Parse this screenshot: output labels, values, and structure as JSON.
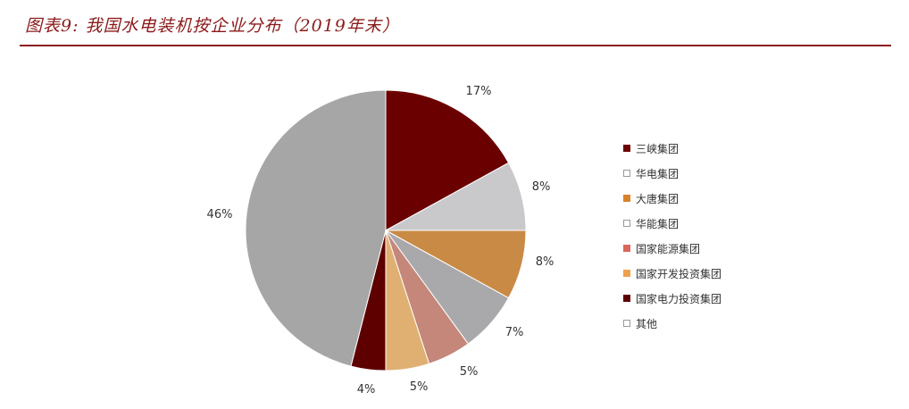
{
  "header": {
    "title": "图表9: 我国水电装机按企业分布（2019年末）"
  },
  "chart_data": {
    "type": "pie",
    "title": "图表9: 我国水电装机按企业分布（2019年末）",
    "categories": [
      "三峡集团",
      "华电集团",
      "大唐集团",
      "华能集团",
      "国家能源集团",
      "国家开发投资集团",
      "国家电力投资集团",
      "其他"
    ],
    "values": [
      17,
      8,
      8,
      7,
      5,
      5,
      4,
      46
    ],
    "labels": [
      "17%",
      "8%",
      "8%",
      "7%",
      "5%",
      "5%",
      "4%",
      "46%"
    ],
    "colors": [
      "#6b0000",
      "#c9c9cb",
      "#c98a45",
      "#a9a9ab",
      "#c4877a",
      "#e0b072",
      "#5e0000",
      "#a6a6a6"
    ],
    "start_angle": "12 o'clock, clockwise",
    "legend_position": "right",
    "unit": "%"
  },
  "legend": {
    "items": [
      {
        "label": "三峡集团",
        "color": "#6b0000",
        "marker": "solid"
      },
      {
        "label": "华电集团",
        "color": "#c9c9cb",
        "marker": "hatch"
      },
      {
        "label": "大唐集团",
        "color": "#d9822b",
        "marker": "solid"
      },
      {
        "label": "华能集团",
        "color": "#a9a9ab",
        "marker": "hatch"
      },
      {
        "label": "国家能源集团",
        "color": "#d9685a",
        "marker": "solid"
      },
      {
        "label": "国家开发投资集团",
        "color": "#eea050",
        "marker": "solid"
      },
      {
        "label": "国家电力投资集团",
        "color": "#5e0000",
        "marker": "solid"
      },
      {
        "label": "其他",
        "color": "#a6a6a6",
        "marker": "hatch"
      }
    ]
  }
}
